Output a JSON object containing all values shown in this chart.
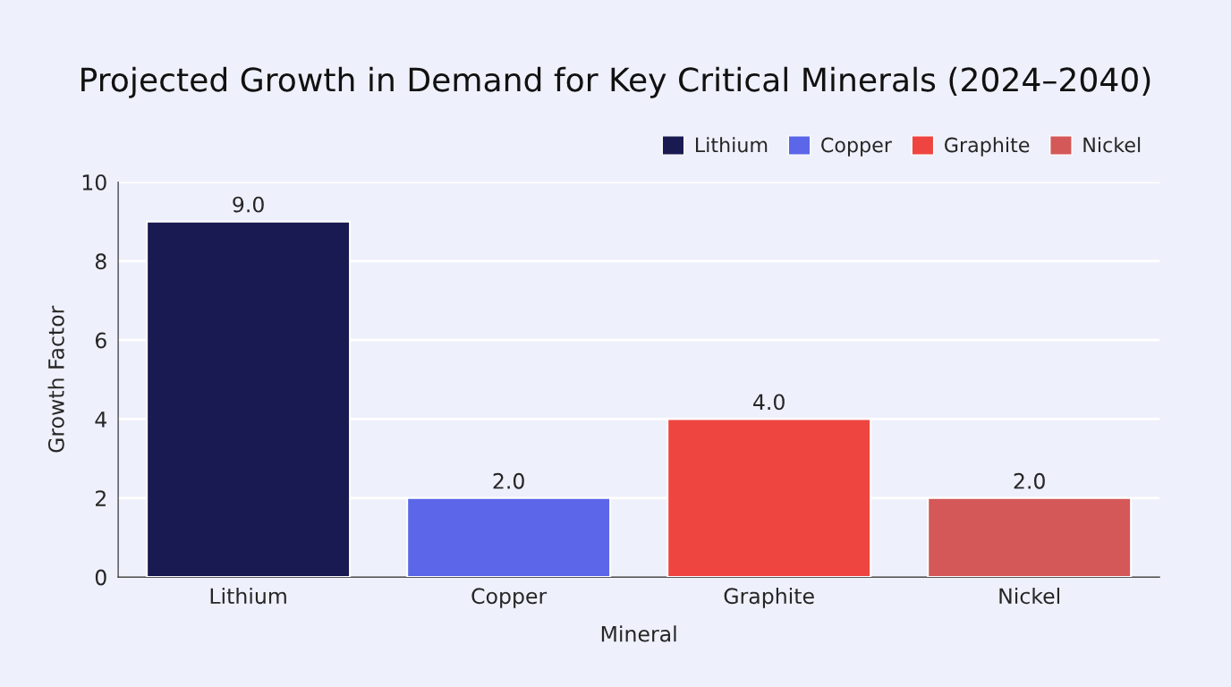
{
  "chart_data": {
    "type": "bar",
    "title": "Projected Growth in Demand for Key Critical Minerals (2024–2040)",
    "xlabel": "Mineral",
    "ylabel": "Growth Factor",
    "categories": [
      "Lithium",
      "Copper",
      "Graphite",
      "Nickel"
    ],
    "series": [
      {
        "name": "Lithium",
        "color": "#1a1a52",
        "values": [
          9.0,
          null,
          null,
          null
        ],
        "value_labels": [
          "9.0",
          null,
          null,
          null
        ]
      },
      {
        "name": "Copper",
        "color": "#5b67e8",
        "values": [
          null,
          2.0,
          null,
          null
        ],
        "value_labels": [
          null,
          "2.0",
          null,
          null
        ]
      },
      {
        "name": "Graphite",
        "color": "#ef4540",
        "values": [
          null,
          null,
          4.0,
          null
        ],
        "value_labels": [
          null,
          null,
          "4.0",
          null
        ]
      },
      {
        "name": "Nickel",
        "color": "#d45858",
        "values": [
          null,
          null,
          null,
          2.0
        ],
        "value_labels": [
          null,
          null,
          null,
          "2.0"
        ]
      }
    ],
    "ylim": [
      0,
      10
    ],
    "yticks": [
      0,
      2,
      4,
      6,
      8,
      10
    ],
    "grid": "y",
    "legend": "top right"
  }
}
